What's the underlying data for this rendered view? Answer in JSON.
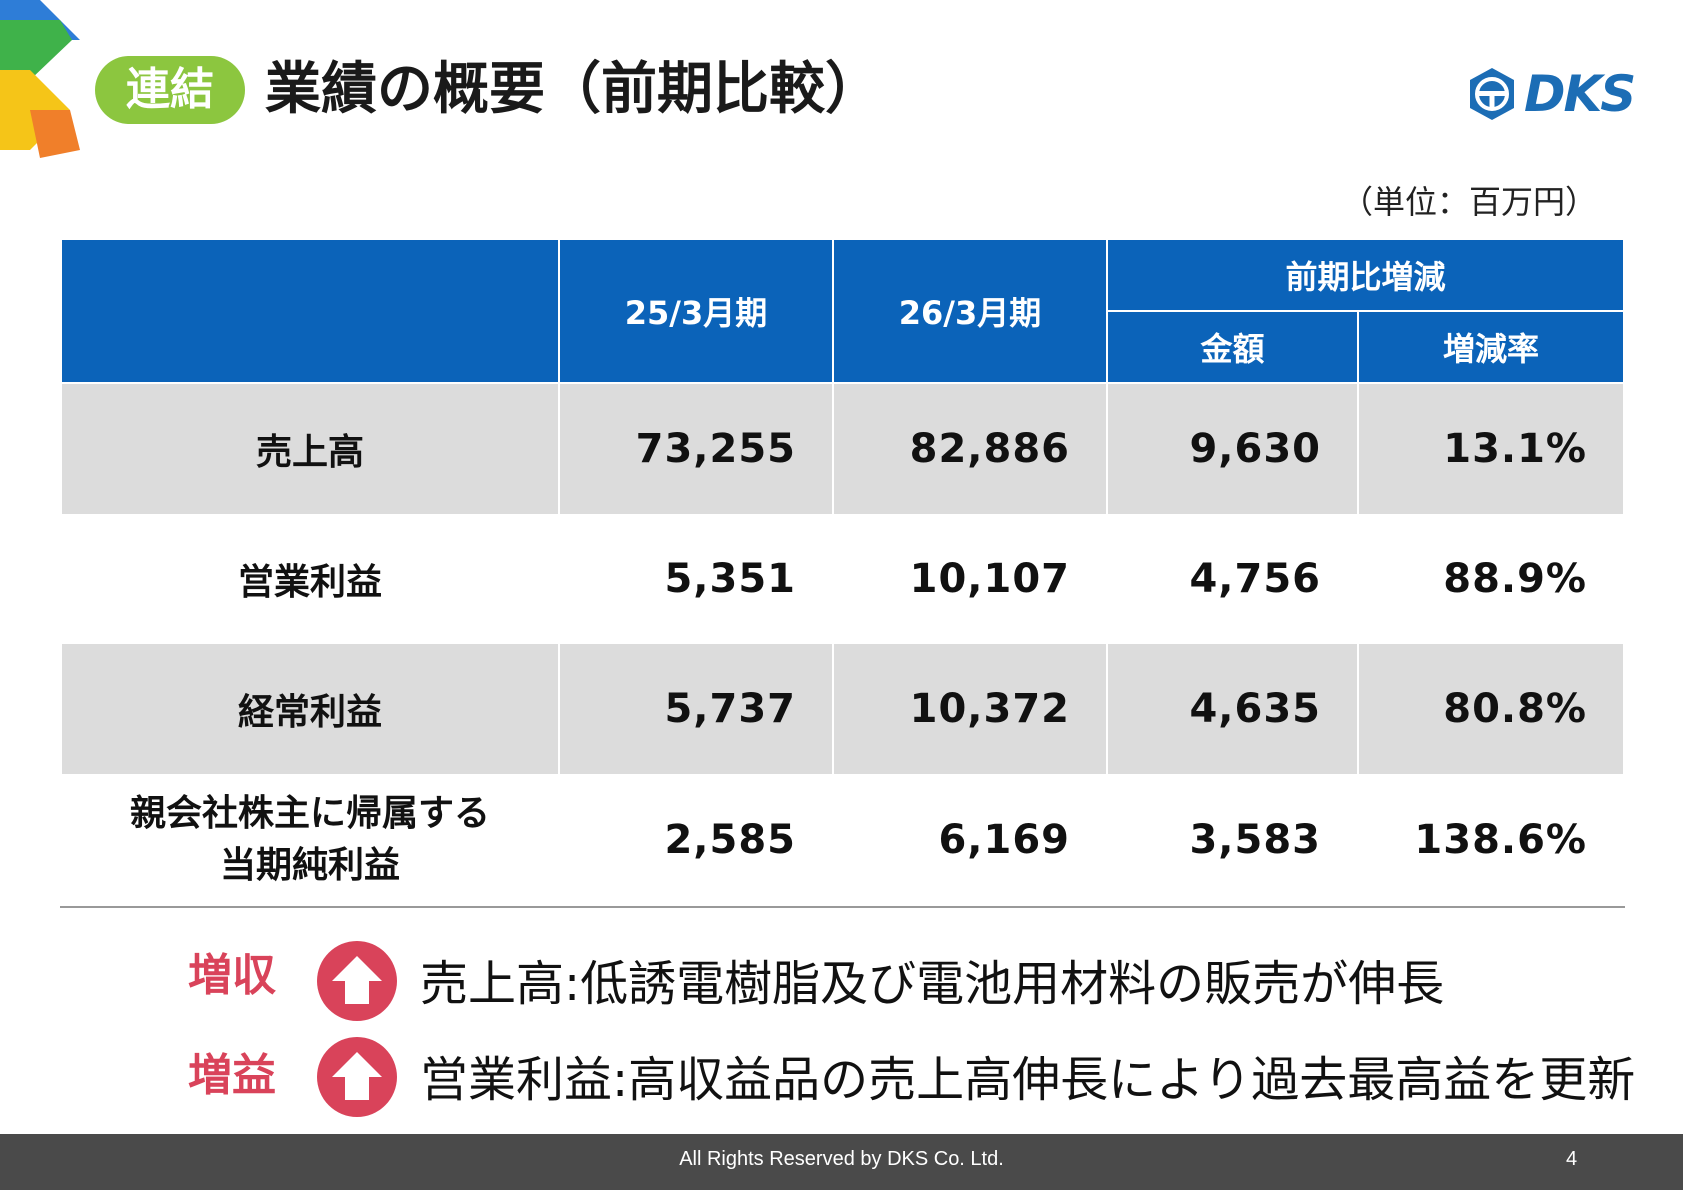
{
  "header": {
    "badge": "連結",
    "title": "業績の概要（前期比較）",
    "logo": "DKS"
  },
  "unit_note": "（単位：百万円）",
  "table": {
    "headers": {
      "prev": "25/3月期",
      "curr": "26/3月期",
      "change_group": "前期比増減",
      "amount": "金額",
      "rate": "増減率"
    },
    "rows": [
      {
        "label": "売上高",
        "prev": "73,255",
        "curr": "82,886",
        "amount": "9,630",
        "rate": "13.1%"
      },
      {
        "label": "営業利益",
        "prev": "5,351",
        "curr": "10,107",
        "amount": "4,756",
        "rate": "88.9%"
      },
      {
        "label": "経常利益",
        "prev": "5,737",
        "curr": "10,372",
        "amount": "4,635",
        "rate": "80.8%"
      },
      {
        "label_line1": "親会社株主に帰属する",
        "label_line2": "当期純利益",
        "prev": "2,585",
        "curr": "6,169",
        "amount": "3,583",
        "rate": "138.6%"
      }
    ]
  },
  "notes": [
    {
      "tag": "増収",
      "text": "売上高:低誘電樹脂及び電池用材料の販売が伸長"
    },
    {
      "tag": "増益",
      "text": "営業利益:高収益品の売上高伸長により過去最高益を更新"
    }
  ],
  "footer": {
    "copyright": "All Rights Reserved by DKS Co. Ltd.",
    "page": "4"
  },
  "colors": {
    "header_blue": "#0b63b9",
    "badge_green": "#8cc63f",
    "accent_red": "#d9435a",
    "row_gray": "#dcdcdc",
    "footer_gray": "#4a4a4a"
  }
}
